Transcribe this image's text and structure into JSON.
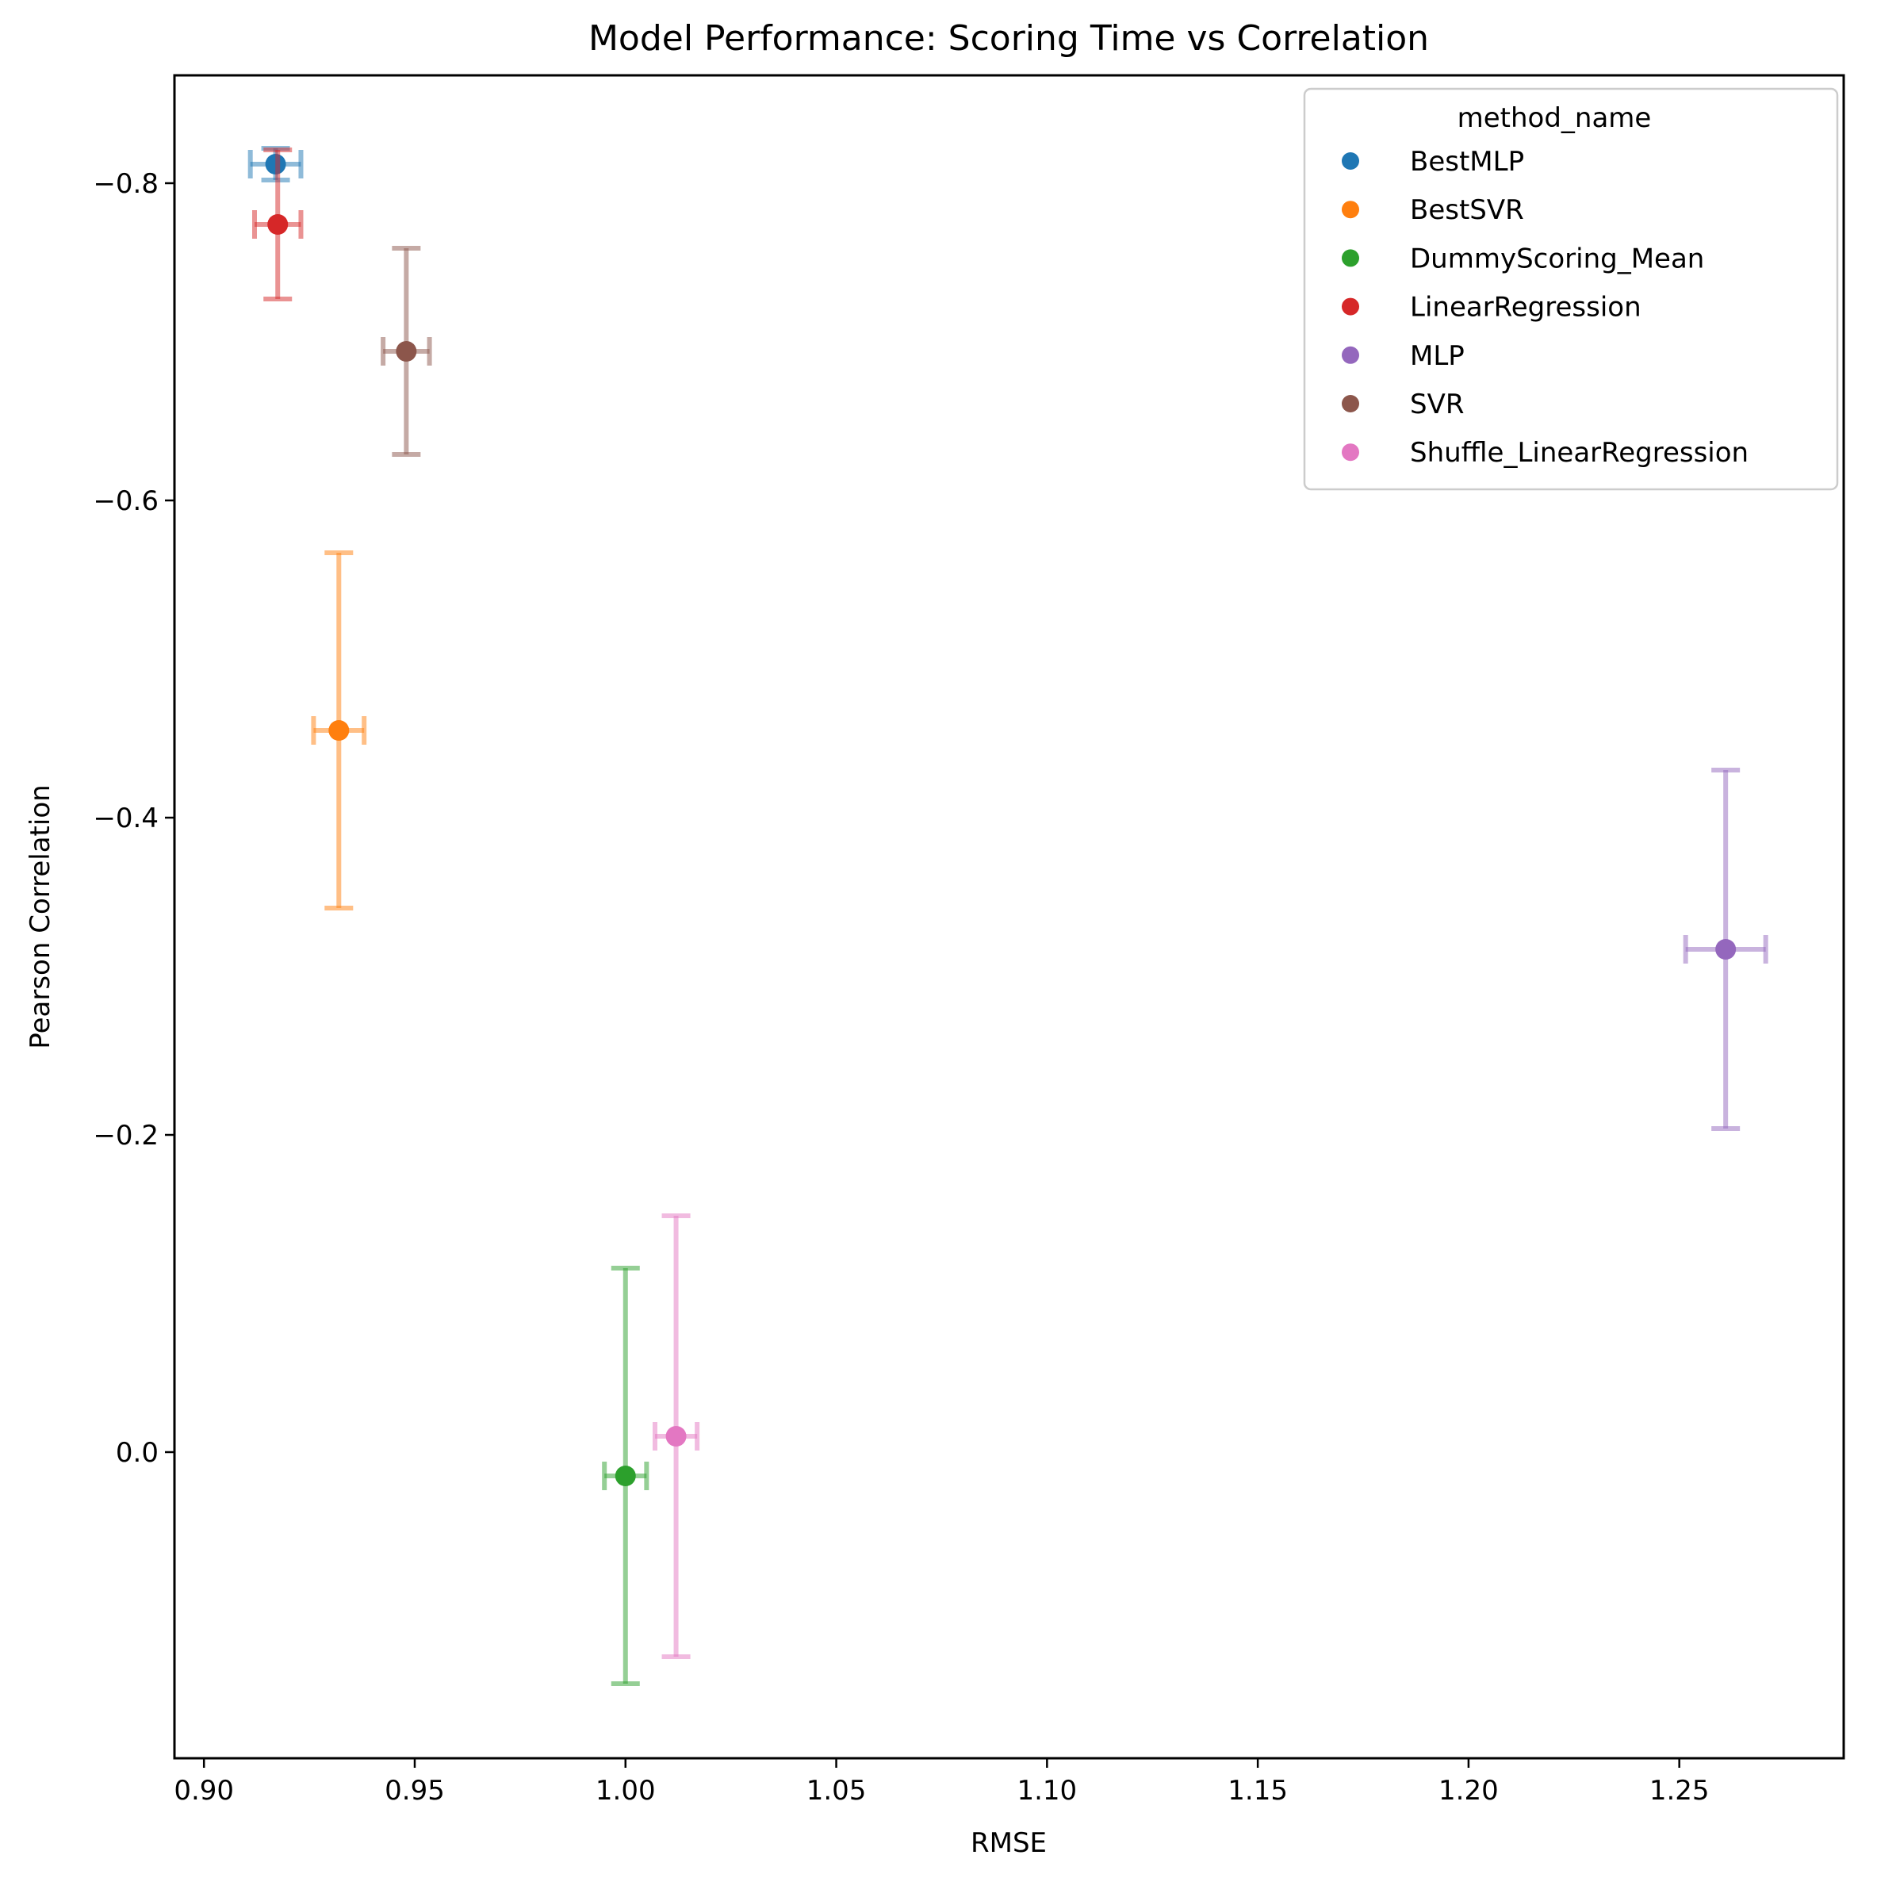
{
  "chart_data": {
    "type": "scatter",
    "title": "Model Performance: Scoring Time vs Correlation",
    "xlabel": "RMSE",
    "ylabel": "Pearson Correlation",
    "xlim": [
      0.893,
      1.289
    ],
    "ylim": [
      0.193,
      -0.868
    ],
    "y_axis_inverted": true,
    "grid": false,
    "legend": {
      "title": "method_name",
      "position": "top-right"
    },
    "xticks": [
      {
        "value": 0.9,
        "label": "0.90"
      },
      {
        "value": 0.95,
        "label": "0.95"
      },
      {
        "value": 1.0,
        "label": "1.00"
      },
      {
        "value": 1.05,
        "label": "1.05"
      },
      {
        "value": 1.1,
        "label": "1.10"
      },
      {
        "value": 1.15,
        "label": "1.15"
      },
      {
        "value": 1.2,
        "label": "1.20"
      },
      {
        "value": 1.25,
        "label": "1.25"
      }
    ],
    "yticks": [
      {
        "value": -0.8,
        "label": "−0.8"
      },
      {
        "value": -0.6,
        "label": "−0.6"
      },
      {
        "value": -0.4,
        "label": "−0.4"
      },
      {
        "value": -0.2,
        "label": "−0.2"
      },
      {
        "value": 0.0,
        "label": "0.0"
      }
    ],
    "series": [
      {
        "name": "BestMLP",
        "color": "#1f77b4",
        "x": 0.917,
        "y": -0.812,
        "xerr": 0.006,
        "yerr": 0.01
      },
      {
        "name": "BestSVR",
        "color": "#ff7f0e",
        "x": 0.932,
        "y": -0.455,
        "xerr": 0.006,
        "yerr": 0.112
      },
      {
        "name": "DummyScoring_Mean",
        "color": "#2ca02c",
        "x": 1.0,
        "y": 0.015,
        "xerr": 0.005,
        "yerr": 0.131
      },
      {
        "name": "LinearRegression",
        "color": "#d62728",
        "x": 0.9175,
        "y": -0.774,
        "xerr": 0.0055,
        "yerr": 0.047
      },
      {
        "name": "MLP",
        "color": "#9467bd",
        "x": 1.261,
        "y": -0.317,
        "xerr": 0.0095,
        "yerr": 0.113
      },
      {
        "name": "SVR",
        "color": "#8c564b",
        "x": 0.948,
        "y": -0.694,
        "xerr": 0.0055,
        "yerr": 0.065
      },
      {
        "name": "Shuffle_LinearRegression",
        "color": "#e377c2",
        "x": 1.012,
        "y": -0.01,
        "xerr": 0.005,
        "yerr": 0.139
      }
    ]
  }
}
